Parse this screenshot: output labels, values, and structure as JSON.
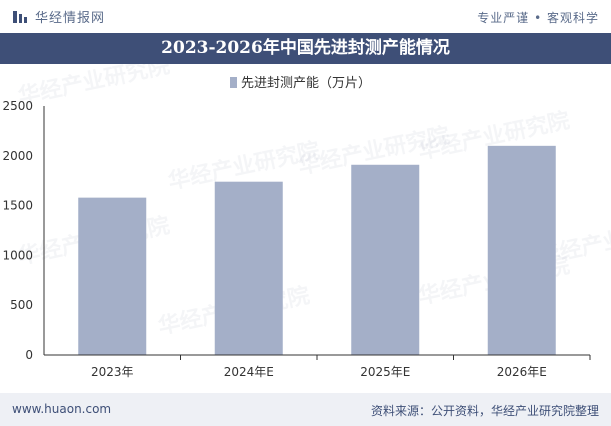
{
  "header": {
    "brand_name": "华经情报网",
    "slogan": "专业严谨 • 客观科学"
  },
  "title": "2023-2026年中国先进封测产能情况",
  "footer": {
    "site": "www.huaon.com",
    "source": "资料来源：公开资料，华经产业研究院整理"
  },
  "watermark": "华经产业研究院",
  "colors": {
    "title_bg": "#3e4f77",
    "bar": "#a4afc8",
    "footer_bg": "#eef0f5"
  },
  "chart_data": {
    "type": "bar",
    "categories": [
      "2023年",
      "2024年E",
      "2025年E",
      "2026年E"
    ],
    "series": [
      {
        "name": "先进封测产能（万片）",
        "values": [
          1580,
          1740,
          1910,
          2100
        ]
      }
    ],
    "yticks": [
      0,
      500,
      1000,
      1500,
      2000,
      2500
    ],
    "ylim": [
      0,
      2500
    ],
    "grid": false,
    "legend": "top-center"
  }
}
